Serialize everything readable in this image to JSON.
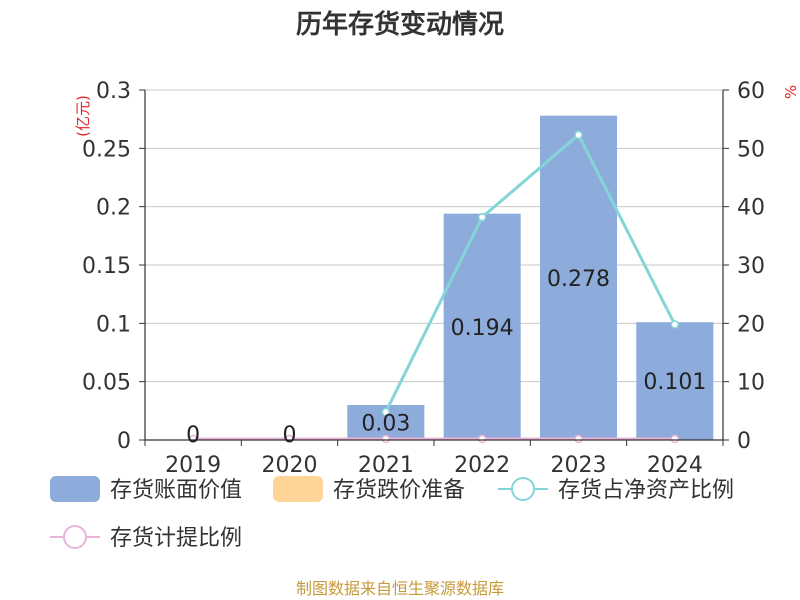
{
  "title": "历年存货变动情况",
  "left_unit": "(亿元)",
  "right_unit": "%",
  "source": "制图数据来自恒生聚源数据库",
  "colors": {
    "bar": "#8eacdb",
    "bar_alt": "#ffd597",
    "line_ratio": "#83d5d7",
    "line_provision": "#e9b3da",
    "grid": "#c8c8c8",
    "axis": "#333333",
    "unit": "#e0242a",
    "source": "#c69a3b"
  },
  "chart_data": {
    "type": "bar",
    "categories": [
      "2019",
      "2020",
      "2021",
      "2022",
      "2023",
      "2024"
    ],
    "series": [
      {
        "name": "存货账面价值",
        "type": "bar",
        "axis": "left",
        "values": [
          0,
          0,
          0.03,
          0.194,
          0.278,
          0.101
        ],
        "labels": [
          "0",
          "0",
          "0.03",
          "0.194",
          "0.278",
          "0.101"
        ]
      },
      {
        "name": "存货跌价准备",
        "type": "bar",
        "axis": "left",
        "values": [
          0,
          0,
          0,
          0,
          0,
          0
        ]
      },
      {
        "name": "存货占净资产比例",
        "type": "line",
        "axis": "right",
        "values": [
          null,
          null,
          4.8,
          38.2,
          52.3,
          19.8
        ]
      },
      {
        "name": "存货计提比例",
        "type": "line",
        "axis": "right",
        "values": [
          0,
          0,
          0,
          0,
          0,
          0
        ]
      }
    ],
    "y_left": {
      "min": 0,
      "max": 0.3,
      "ticks": [
        "0",
        "0.05",
        "0.1",
        "0.15",
        "0.2",
        "0.25",
        "0.3"
      ]
    },
    "y_right": {
      "min": 0,
      "max": 60,
      "ticks": [
        "0",
        "10",
        "20",
        "30",
        "40",
        "50",
        "60"
      ]
    },
    "grid": true,
    "legend_position": "bottom"
  }
}
